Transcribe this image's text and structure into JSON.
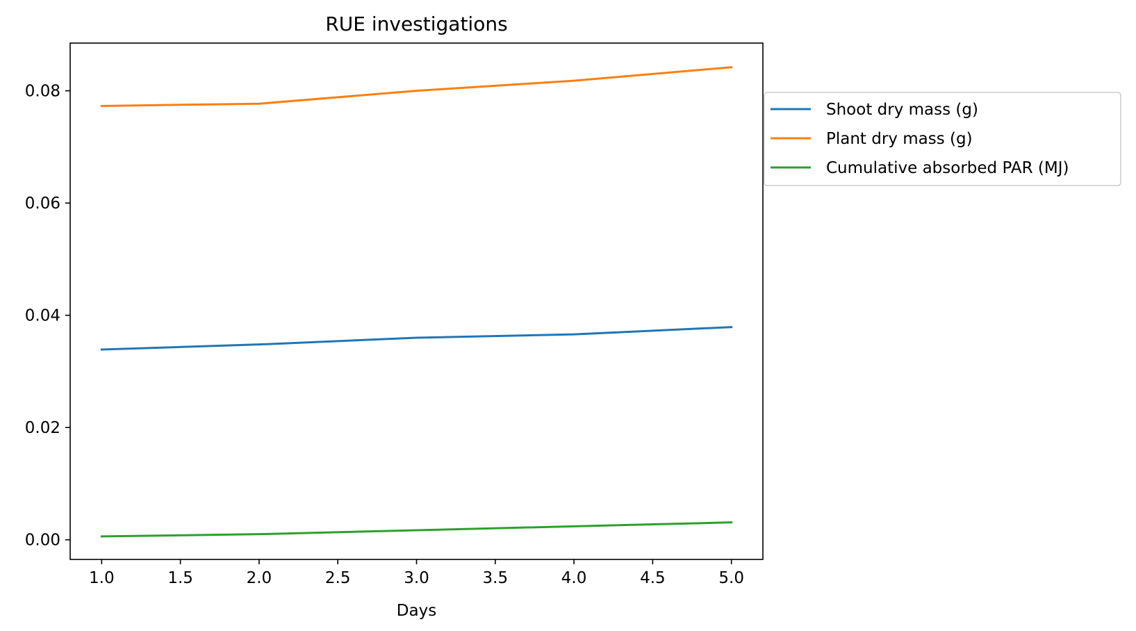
{
  "chart_data": {
    "type": "line",
    "title": "RUE investigations",
    "xlabel": "Days",
    "ylabel": "",
    "x": [
      1,
      2,
      3,
      4,
      5
    ],
    "xlim": [
      0.8,
      5.2
    ],
    "ylim": [
      -0.0035,
      0.0885
    ],
    "x_ticks": [
      "1.0",
      "1.5",
      "2.0",
      "2.5",
      "3.0",
      "3.5",
      "4.0",
      "4.5",
      "5.0"
    ],
    "x_tick_values": [
      1.0,
      1.5,
      2.0,
      2.5,
      3.0,
      3.5,
      4.0,
      4.5,
      5.0
    ],
    "y_ticks": [
      "0.00",
      "0.02",
      "0.04",
      "0.06",
      "0.08"
    ],
    "y_tick_values": [
      0.0,
      0.02,
      0.04,
      0.06,
      0.08
    ],
    "grid": false,
    "legend_placement": "outside-right",
    "series": [
      {
        "name": "Shoot dry mass (g)",
        "color": "#1f77b4",
        "values": [
          0.0339,
          0.0348,
          0.036,
          0.0366,
          0.0379
        ]
      },
      {
        "name": "Plant dry mass (g)",
        "color": "#ff7f0e",
        "values": [
          0.0773,
          0.0777,
          0.08,
          0.0818,
          0.0842
        ]
      },
      {
        "name": "Cumulative absorbed PAR (MJ)",
        "color": "#2ca02c",
        "values": [
          0.0006,
          0.001,
          0.0017,
          0.0024,
          0.0031
        ]
      }
    ]
  }
}
